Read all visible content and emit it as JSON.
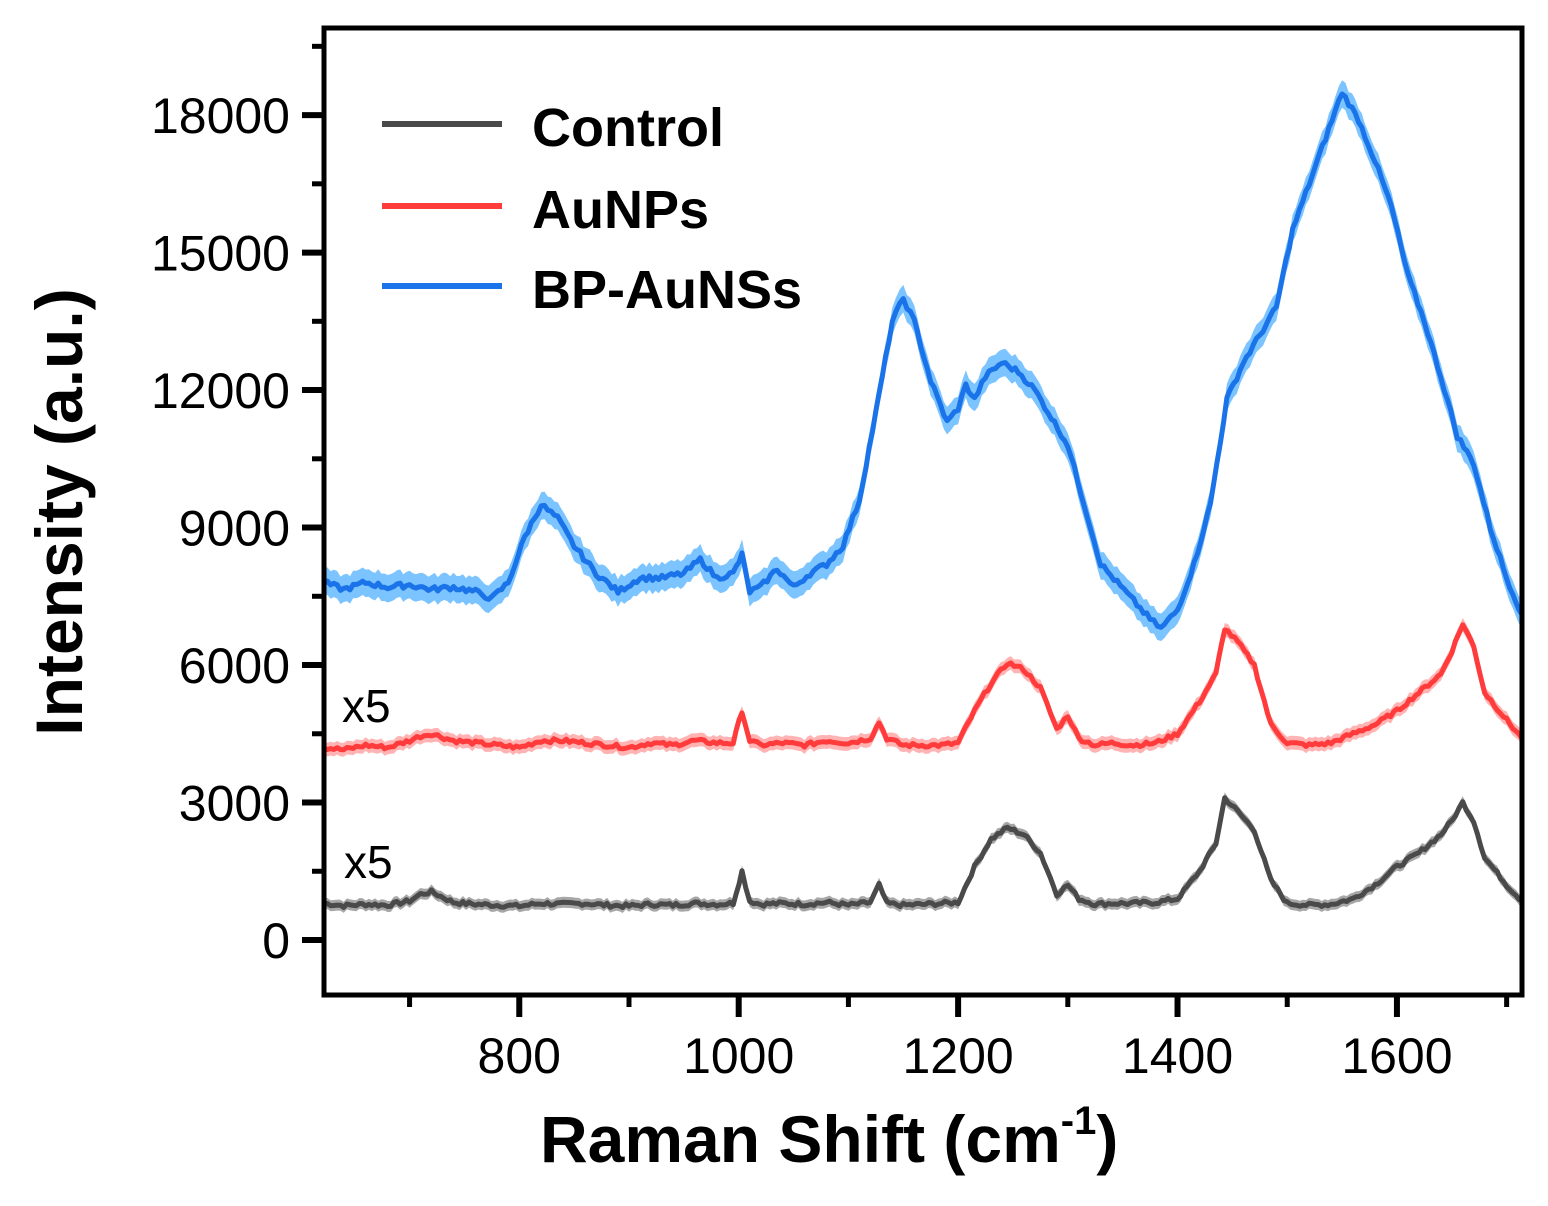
{
  "chart_data": {
    "type": "line",
    "title": "",
    "xlabel": "Raman Shift (cm-1)",
    "xlabel_main": "Raman Shift (cm",
    "xlabel_sup": "-1",
    "xlabel_close": ")",
    "ylabel": "Intensity (a.u.)",
    "xlim": [
      622,
      1714
    ],
    "ylim": [
      -1200,
      19900
    ],
    "x_ticks": [
      800,
      1000,
      1200,
      1400,
      1600
    ],
    "x_minor_ticks": [
      700,
      900,
      1100,
      1300,
      1500,
      1700
    ],
    "y_ticks": [
      0,
      3000,
      6000,
      9000,
      12000,
      15000,
      18000
    ],
    "y_minor_ticks": [
      1500,
      4500,
      7500,
      10500,
      13500,
      16500,
      19500
    ],
    "grid": false,
    "legend_position": "upper-left",
    "annotations": [
      {
        "text": "x5",
        "x": 650,
        "y": 5300,
        "target": "AuNPs"
      },
      {
        "text": "x5",
        "x": 650,
        "y": 1800,
        "target": "Control"
      }
    ],
    "series": [
      {
        "name": "Control",
        "color": "#4a4a4a",
        "band_color": "#8a8a8a",
        "x": [
          622,
          640,
          660,
          680,
          700,
          710,
          720,
          740,
          760,
          780,
          800,
          820,
          840,
          860,
          880,
          900,
          920,
          940,
          960,
          980,
          995,
          1003,
          1010,
          1020,
          1040,
          1060,
          1080,
          1100,
          1120,
          1128,
          1135,
          1150,
          1170,
          1185,
          1200,
          1215,
          1230,
          1245,
          1260,
          1275,
          1290,
          1300,
          1310,
          1325,
          1340,
          1360,
          1380,
          1400,
          1420,
          1435,
          1443,
          1455,
          1470,
          1485,
          1500,
          1520,
          1540,
          1560,
          1580,
          1600,
          1620,
          1640,
          1650,
          1660,
          1670,
          1680,
          1700,
          1714
        ],
        "y": [
          800,
          750,
          780,
          760,
          850,
          1000,
          1050,
          820,
          780,
          760,
          740,
          800,
          780,
          800,
          760,
          740,
          780,
          760,
          800,
          780,
          800,
          1500,
          850,
          780,
          800,
          780,
          820,
          760,
          820,
          1200,
          800,
          760,
          780,
          800,
          820,
          1600,
          2200,
          2450,
          2300,
          1900,
          1000,
          1200,
          900,
          780,
          800,
          800,
          820,
          900,
          1500,
          2100,
          3100,
          2800,
          2400,
          1300,
          800,
          760,
          780,
          900,
          1200,
          1600,
          1900,
          2300,
          2600,
          3000,
          2600,
          1800,
          1200,
          850
        ],
        "band": 120
      },
      {
        "name": "AuNPs",
        "color": "#ff3b3b",
        "band_color": "#ff9a9a",
        "x": [
          622,
          640,
          660,
          680,
          700,
          710,
          720,
          740,
          760,
          780,
          800,
          820,
          840,
          860,
          880,
          900,
          920,
          940,
          960,
          980,
          995,
          1003,
          1010,
          1020,
          1040,
          1060,
          1080,
          1100,
          1120,
          1128,
          1135,
          1150,
          1170,
          1185,
          1200,
          1215,
          1230,
          1245,
          1260,
          1275,
          1290,
          1300,
          1310,
          1325,
          1340,
          1360,
          1380,
          1400,
          1420,
          1435,
          1443,
          1455,
          1470,
          1485,
          1500,
          1520,
          1540,
          1560,
          1580,
          1600,
          1620,
          1640,
          1650,
          1660,
          1670,
          1680,
          1700,
          1714
        ],
        "y": [
          4200,
          4150,
          4250,
          4200,
          4350,
          4450,
          4500,
          4350,
          4300,
          4250,
          4200,
          4350,
          4350,
          4300,
          4250,
          4200,
          4300,
          4250,
          4350,
          4300,
          4300,
          5000,
          4350,
          4250,
          4300,
          4250,
          4350,
          4300,
          4400,
          4750,
          4400,
          4250,
          4250,
          4250,
          4300,
          5000,
          5600,
          6050,
          5900,
          5500,
          4600,
          4900,
          4400,
          4250,
          4300,
          4250,
          4300,
          4500,
          5200,
          5800,
          6800,
          6500,
          6000,
          4700,
          4300,
          4250,
          4300,
          4500,
          4700,
          5000,
          5400,
          5800,
          6300,
          6900,
          6400,
          5400,
          4800,
          4400
        ],
        "band": 150
      },
      {
        "name": "BP-AuNSs",
        "color": "#1a73e8",
        "band_color": "#4fb0ff",
        "x": [
          622,
          640,
          660,
          680,
          700,
          720,
          740,
          760,
          775,
          790,
          805,
          820,
          835,
          850,
          870,
          890,
          910,
          930,
          950,
          965,
          980,
          995,
          1003,
          1010,
          1020,
          1035,
          1050,
          1065,
          1080,
          1095,
          1110,
          1125,
          1140,
          1150,
          1160,
          1175,
          1190,
          1200,
          1207,
          1215,
          1225,
          1240,
          1255,
          1270,
          1285,
          1300,
          1315,
          1330,
          1345,
          1360,
          1375,
          1385,
          1400,
          1415,
          1430,
          1445,
          1460,
          1475,
          1490,
          1505,
          1520,
          1535,
          1550,
          1565,
          1580,
          1595,
          1610,
          1625,
          1640,
          1655,
          1670,
          1685,
          1700,
          1714
        ],
        "y": [
          7800,
          7650,
          7800,
          7700,
          7750,
          7650,
          7700,
          7600,
          7450,
          7800,
          8800,
          9500,
          9200,
          8600,
          8000,
          7600,
          7900,
          7900,
          8000,
          8300,
          7900,
          8000,
          8400,
          7600,
          7700,
          8100,
          7700,
          8000,
          8200,
          8600,
          9600,
          11500,
          13500,
          14000,
          13500,
          12200,
          11300,
          11600,
          12100,
          11800,
          12300,
          12600,
          12400,
          12000,
          11400,
          10800,
          9500,
          8200,
          7800,
          7400,
          7000,
          6800,
          7200,
          8200,
          9500,
          11800,
          12600,
          13200,
          13800,
          15500,
          16500,
          17500,
          18500,
          17900,
          17000,
          16000,
          14500,
          13500,
          12300,
          11000,
          10400,
          9000,
          7900,
          7100
        ],
        "band": 300
      }
    ]
  },
  "legend": {
    "items": [
      {
        "label": "Control",
        "color": "#4a4a4a"
      },
      {
        "label": "AuNPs",
        "color": "#ff3b3b"
      },
      {
        "label": "BP-AuNSs",
        "color": "#1a73e8"
      }
    ]
  }
}
